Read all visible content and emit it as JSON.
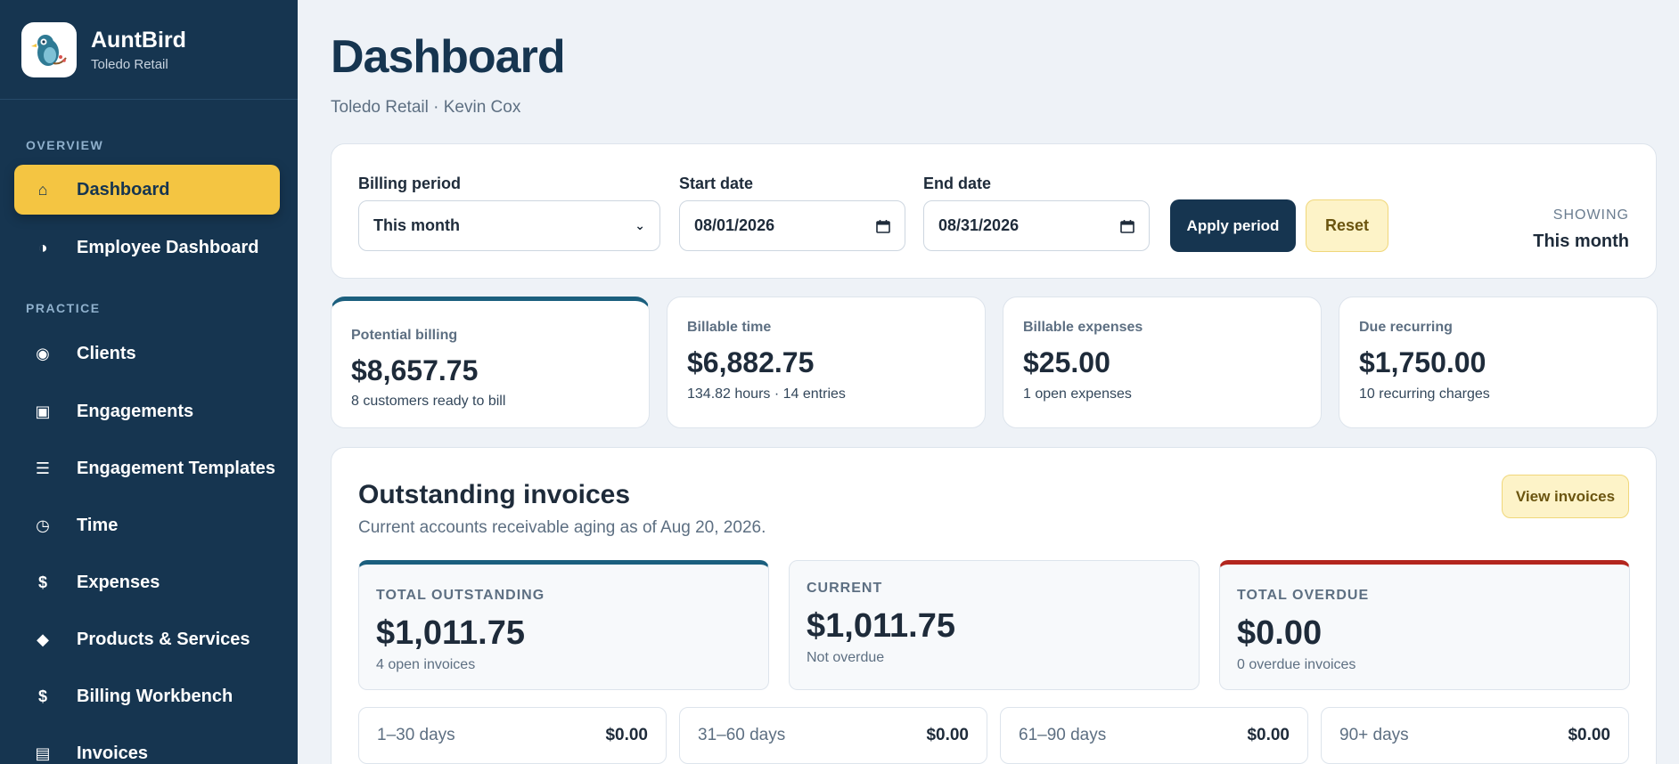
{
  "brand": {
    "name": "AuntBird",
    "subtitle": "Toledo Retail"
  },
  "nav": {
    "sections": {
      "overview": "OVERVIEW",
      "practice": "PRACTICE"
    },
    "items": [
      {
        "label": "Dashboard",
        "icon": "⌂",
        "active": true
      },
      {
        "label": "Employee Dashboard",
        "icon": "◑"
      },
      {
        "label": "Clients",
        "icon": "◉"
      },
      {
        "label": "Engagements",
        "icon": "▣"
      },
      {
        "label": "Engagement Templates",
        "icon": "☰"
      },
      {
        "label": "Time",
        "icon": "◷"
      },
      {
        "label": "Expenses",
        "icon": "$"
      },
      {
        "label": "Products & Services",
        "icon": "◆"
      },
      {
        "label": "Billing Workbench",
        "icon": "$"
      },
      {
        "label": "Invoices",
        "icon": "▤"
      }
    ]
  },
  "page": {
    "title": "Dashboard",
    "subtitle": "Toledo Retail · Kevin Cox"
  },
  "filters": {
    "billing_period_label": "Billing period",
    "billing_period_value": "This month",
    "start_label": "Start date",
    "start_value": "08/01/2026",
    "end_label": "End date",
    "end_value": "08/31/2026",
    "apply_label": "Apply period",
    "reset_label": "Reset",
    "showing_label": "SHOWING",
    "showing_value": "This month"
  },
  "stats": [
    {
      "label": "Potential billing",
      "value": "$8,657.75",
      "sub": "8 customers ready to bill"
    },
    {
      "label": "Billable time",
      "value": "$6,882.75",
      "sub": "134.82 hours · 14 entries"
    },
    {
      "label": "Billable expenses",
      "value": "$25.00",
      "sub": "1 open expenses"
    },
    {
      "label": "Due recurring",
      "value": "$1,750.00",
      "sub": "10 recurring charges"
    }
  ],
  "invoices": {
    "title": "Outstanding invoices",
    "subtitle": "Current accounts receivable aging as of Aug 20, 2026.",
    "view_label": "View invoices",
    "summary": [
      {
        "label": "TOTAL OUTSTANDING",
        "value": "$1,011.75",
        "sub": "4 open invoices"
      },
      {
        "label": "CURRENT",
        "value": "$1,011.75",
        "sub": "Not overdue"
      },
      {
        "label": "TOTAL OVERDUE",
        "value": "$0.00",
        "sub": "0 overdue invoices"
      }
    ],
    "buckets": [
      {
        "label": "1–30 days",
        "value": "$0.00"
      },
      {
        "label": "31–60 days",
        "value": "$0.00"
      },
      {
        "label": "61–90 days",
        "value": "$0.00"
      },
      {
        "label": "90+ days",
        "value": "$0.00"
      }
    ]
  },
  "colors": {
    "sidebar": "#163550",
    "accent": "#f4c542",
    "teal": "#1b5f7e",
    "danger": "#b3261e"
  }
}
